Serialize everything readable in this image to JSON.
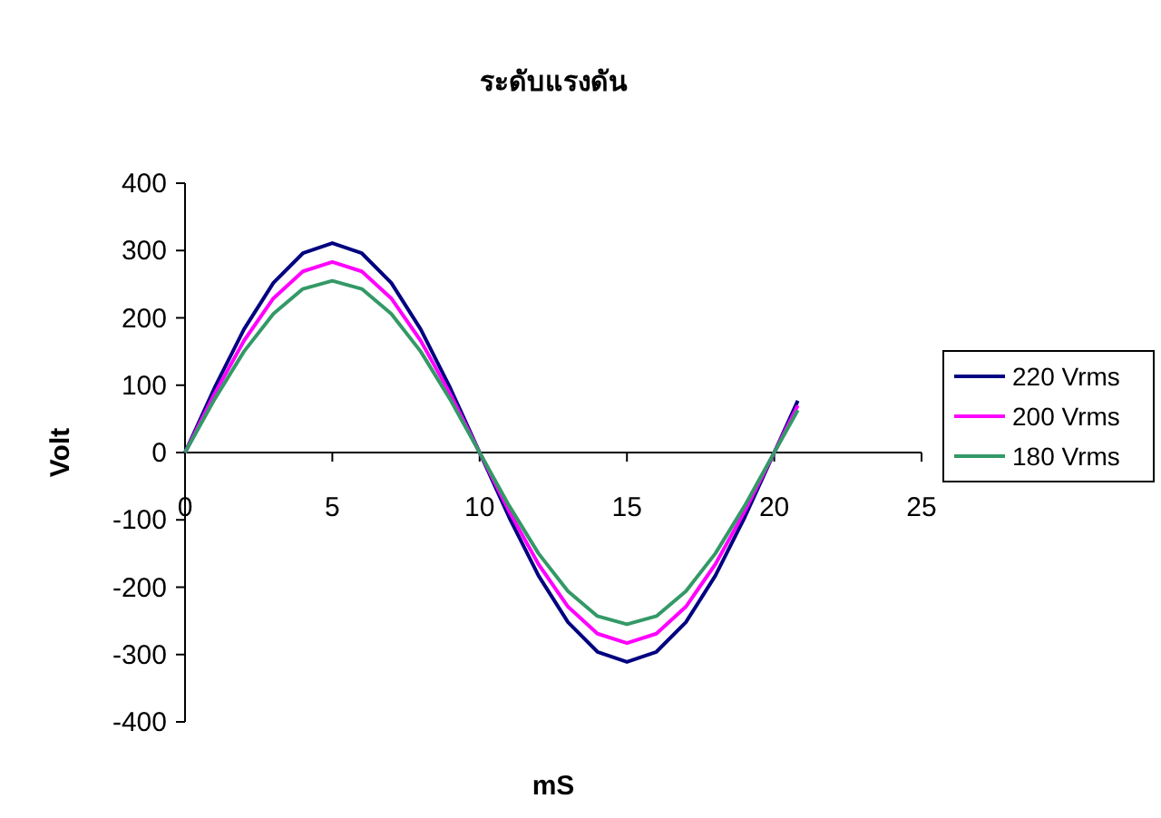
{
  "chart_data": {
    "type": "line",
    "title": "ระดับแรงดัน",
    "xlabel": "mS",
    "ylabel": "Volt",
    "x": [
      0,
      1,
      2,
      3,
      4,
      5,
      6,
      7,
      8,
      9,
      10,
      11,
      12,
      13,
      14,
      15,
      16,
      17,
      18,
      19,
      20,
      20.8
    ],
    "series": [
      {
        "name": "220 Vrms",
        "color": "#000080",
        "values": [
          0,
          96,
          183,
          252,
          296,
          311,
          296,
          252,
          183,
          96,
          0,
          -96,
          -183,
          -252,
          -296,
          -311,
          -296,
          -252,
          -183,
          -96,
          0,
          77
        ]
      },
      {
        "name": "200 Vrms",
        "color": "#ff00ff",
        "values": [
          0,
          87,
          166,
          229,
          269,
          283,
          269,
          229,
          166,
          87,
          0,
          -87,
          -166,
          -229,
          -269,
          -283,
          -269,
          -229,
          -166,
          -87,
          0,
          70
        ]
      },
      {
        "name": "180 Vrms",
        "color": "#339966",
        "values": [
          0,
          79,
          150,
          206,
          243,
          255,
          243,
          206,
          150,
          79,
          0,
          -79,
          -150,
          -206,
          -243,
          -255,
          -243,
          -206,
          -150,
          -79,
          0,
          63
        ]
      }
    ],
    "xlim": [
      0,
      25
    ],
    "ylim": [
      -400,
      400
    ],
    "xticks": [
      0,
      5,
      10,
      15,
      20,
      25
    ],
    "yticks": [
      -400,
      -300,
      -200,
      -100,
      0,
      100,
      200,
      300,
      400
    ],
    "grid": false,
    "legend": "right"
  }
}
